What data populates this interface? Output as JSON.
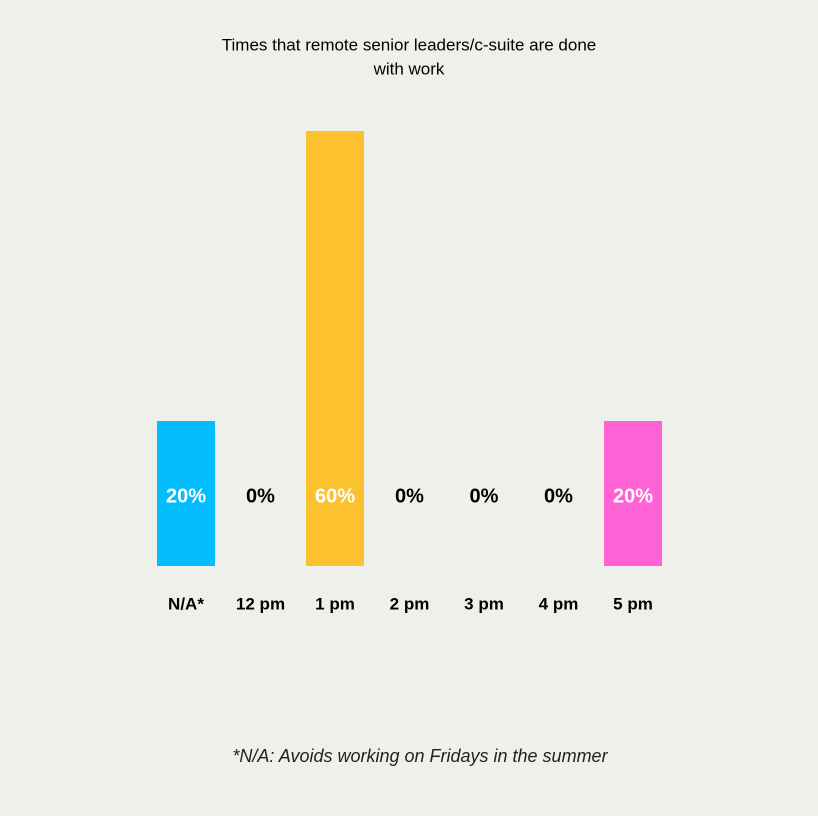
{
  "chart_data": {
    "type": "bar",
    "title": [
      "Times that remote senior leaders/c-suite are done",
      "with work"
    ],
    "categories": [
      "N/A*",
      "12 pm",
      "1 pm",
      "2 pm",
      "3 pm",
      "4 pm",
      "5 pm"
    ],
    "values": [
      20,
      0,
      60,
      0,
      0,
      0,
      20
    ],
    "value_labels": [
      "20%",
      "0%",
      "60%",
      "0%",
      "0%",
      "0%",
      "20%"
    ],
    "colors": [
      "#04bdfd",
      null,
      "#fbc12e",
      null,
      null,
      null,
      "#ff62d5"
    ],
    "footnote": "*N/A: Avoids working on Fridays in the summer"
  }
}
